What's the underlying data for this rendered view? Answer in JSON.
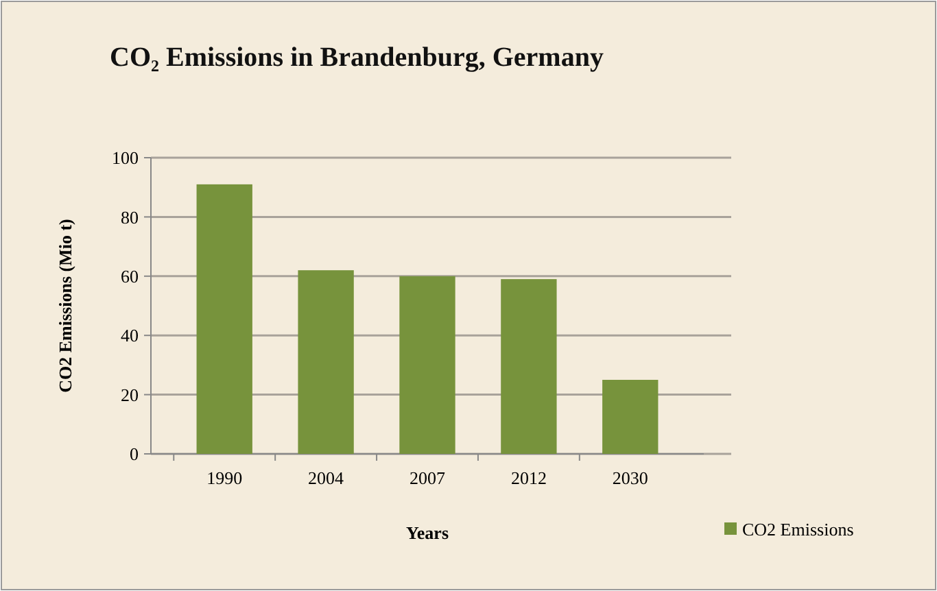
{
  "chart_data": {
    "type": "bar",
    "title": "CO₂ Emissions in Brandenburg, Germany",
    "xlabel": "Years",
    "ylabel": "CO2 Emissions (Mio t)",
    "categories": [
      "1990",
      "2004",
      "2007",
      "2012",
      "2030"
    ],
    "series": [
      {
        "name": "CO2 Emissions",
        "color": "#77933c",
        "values": [
          91,
          62,
          60,
          59,
          25
        ]
      }
    ],
    "ylim": [
      0,
      100
    ],
    "yticks": [
      0,
      20,
      40,
      60,
      80,
      100
    ],
    "grid": "y",
    "legend": "bottom right"
  }
}
